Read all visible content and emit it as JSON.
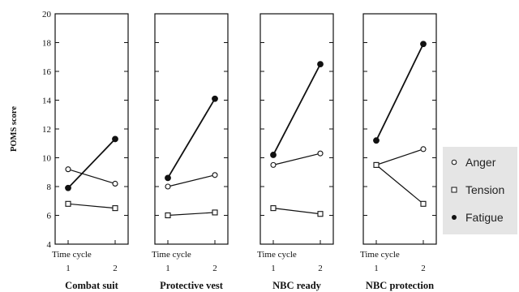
{
  "chart_data": {
    "type": "line",
    "ylabel": "POMS score",
    "ylim": [
      4,
      20
    ],
    "yticks": [
      4,
      6,
      8,
      10,
      12,
      14,
      16,
      18,
      20
    ],
    "x_label": "Time cycle",
    "x": [
      "1",
      "2"
    ],
    "legend": {
      "placement": "right",
      "items": [
        {
          "name": "Anger",
          "marker": "open-circle"
        },
        {
          "name": "Tension",
          "marker": "open-square"
        },
        {
          "name": "Fatigue",
          "marker": "filled-circle"
        }
      ]
    },
    "panels": [
      {
        "title": "Combat suit",
        "series": [
          {
            "name": "Anger",
            "values": [
              9.2,
              8.2
            ]
          },
          {
            "name": "Tension",
            "values": [
              6.8,
              6.5
            ]
          },
          {
            "name": "Fatigue",
            "values": [
              7.9,
              11.3
            ]
          }
        ]
      },
      {
        "title": "Protective vest",
        "series": [
          {
            "name": "Anger",
            "values": [
              8.0,
              8.8
            ]
          },
          {
            "name": "Tension",
            "values": [
              6.0,
              6.2
            ]
          },
          {
            "name": "Fatigue",
            "values": [
              8.6,
              14.1
            ]
          }
        ]
      },
      {
        "title": "NBC ready",
        "series": [
          {
            "name": "Anger",
            "values": [
              9.5,
              10.3
            ]
          },
          {
            "name": "Tension",
            "values": [
              6.5,
              6.1
            ]
          },
          {
            "name": "Fatigue",
            "values": [
              10.2,
              16.5
            ]
          }
        ]
      },
      {
        "title": "NBC protection",
        "series": [
          {
            "name": "Anger",
            "values": [
              9.5,
              10.6
            ]
          },
          {
            "name": "Tension",
            "values": [
              9.5,
              6.8
            ]
          },
          {
            "name": "Fatigue",
            "values": [
              11.2,
              17.9
            ]
          }
        ]
      }
    ]
  }
}
